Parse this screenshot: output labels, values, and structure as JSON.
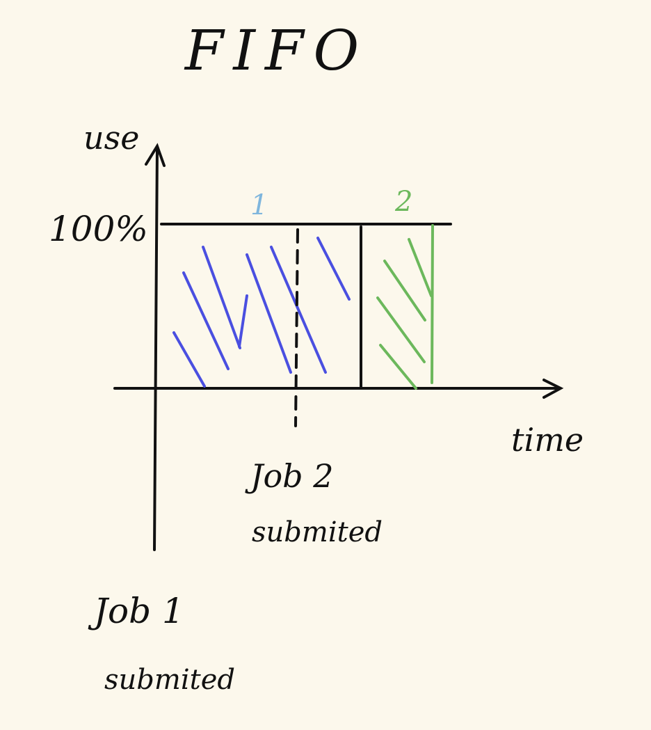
{
  "title": "FIFO",
  "y_axis_label": "use",
  "x_axis_label": "time",
  "level_label": "100%",
  "job1": {
    "number": "1",
    "color": "#7fb6dd",
    "hatch_color": "#4a4fe0",
    "caption_line1": "Job 1",
    "caption_line2": "submited"
  },
  "job2": {
    "number": "2",
    "color": "#6cb85c",
    "hatch_color": "#6cb85c",
    "caption_line1": "Job 2",
    "caption_line2": "submited"
  },
  "ink_color": "#111111"
}
